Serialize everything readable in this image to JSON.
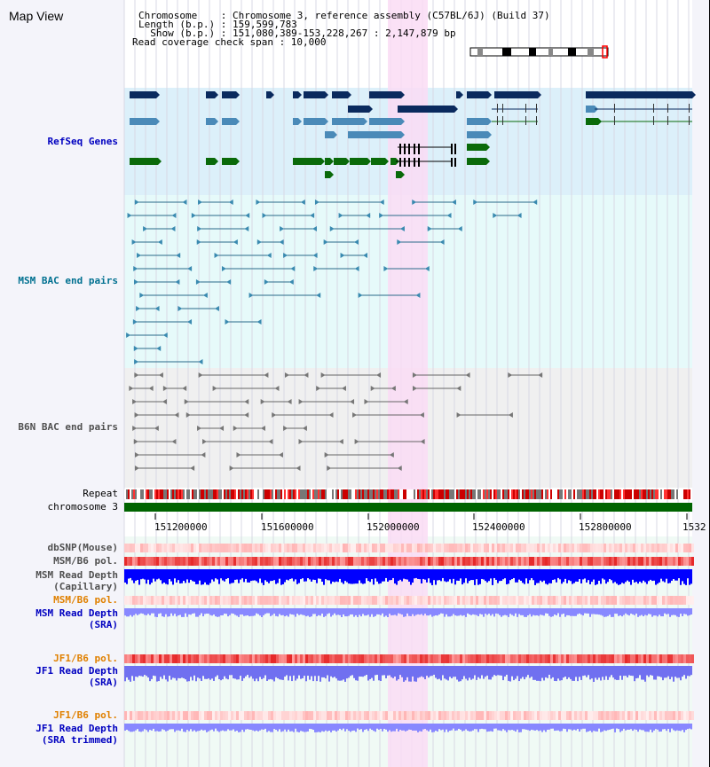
{
  "header": {
    "title": "Map View",
    "chromosome_line": "Chromosome    : Chromosome 3, reference assembly (C57BL/6J) (Build 37)",
    "length_line": "Length (b.p.) : 159,599,783",
    "show_line": "  Show (b.p.) : 151,080,389-153,228,267 : 2,147,879 bp",
    "coverage_line": "Read coverage check span : 10,000"
  },
  "tracks": {
    "refseq": "RefSeq Genes",
    "msm_bac": "MSM BAC end pairs",
    "b6n_bac": "B6N BAC end pairs",
    "repeat": "Repeat",
    "chromosome": "chromosome 3",
    "dbsnp": "dbSNP(Mouse)",
    "msm_b6_pol_1": "MSM/B6 pol.",
    "msm_depth_cap_1": "MSM Read Depth",
    "msm_depth_cap_2": "(Capillary)",
    "msm_b6_pol_2": "MSM/B6 pol.",
    "msm_depth_sra_1": "MSM Read Depth",
    "msm_depth_sra_2": "(SRA)",
    "jf1_b6_pol_1": "JF1/B6 pol.",
    "jf1_depth_sra_1": "JF1 Read Depth",
    "jf1_depth_sra_2": "(SRA)",
    "jf1_b6_pol_2": "JF1/B6 pol.",
    "jf1_depth_trim_1": "JF1 Read Depth",
    "jf1_depth_trim_2": "(SRA trimmed)"
  },
  "axis": {
    "ticks": [
      "151200000",
      "151600000",
      "152000000",
      "152400000",
      "152800000",
      "1532"
    ]
  },
  "colors": {
    "refseq_bg": "#dcf0fa",
    "bac_bg": "#e6fafa",
    "highlight": "#fadcf5",
    "refseq_label": "#0000c0",
    "msm_label": "#007090",
    "b6n_label": "#505050",
    "pol_label": "#e08000",
    "depth_label": "#0000c0",
    "chromosome_bar": "#006400"
  }
}
